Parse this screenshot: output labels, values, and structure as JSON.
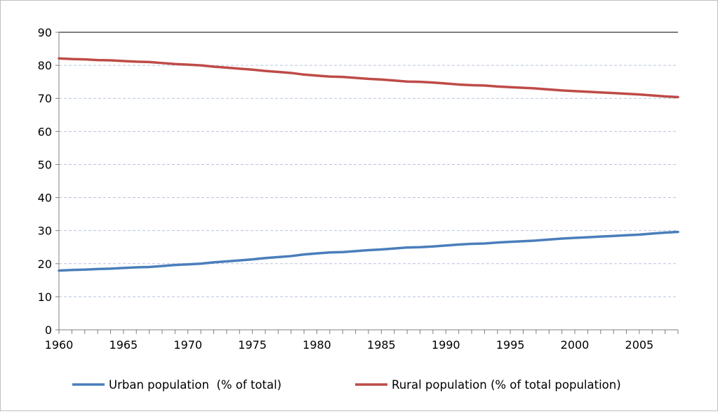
{
  "chart_data": {
    "type": "line",
    "title": "",
    "xlabel": "",
    "ylabel": "",
    "xlim": [
      1960,
      2008
    ],
    "ylim": [
      0,
      90
    ],
    "yticks": [
      0,
      10,
      20,
      30,
      40,
      50,
      60,
      70,
      80,
      90
    ],
    "xticks": [
      1960,
      1965,
      1970,
      1975,
      1980,
      1985,
      1990,
      1995,
      2000,
      2005
    ],
    "grid": true,
    "legend_position": "bottom",
    "x": [
      1960,
      1961,
      1962,
      1963,
      1964,
      1965,
      1966,
      1967,
      1968,
      1969,
      1970,
      1971,
      1972,
      1973,
      1974,
      1975,
      1976,
      1977,
      1978,
      1979,
      1980,
      1981,
      1982,
      1983,
      1984,
      1985,
      1986,
      1987,
      1988,
      1989,
      1990,
      1991,
      1992,
      1993,
      1994,
      1995,
      1996,
      1997,
      1998,
      1999,
      2000,
      2001,
      2002,
      2003,
      2004,
      2005,
      2006,
      2007,
      2008
    ],
    "series": [
      {
        "name": "Urban population  (% of total)",
        "color": "#4a7ebb",
        "values": [
          17.9,
          18.1,
          18.2,
          18.4,
          18.5,
          18.7,
          18.9,
          19.0,
          19.3,
          19.6,
          19.8,
          20.0,
          20.4,
          20.7,
          21.0,
          21.3,
          21.7,
          22.0,
          22.3,
          22.8,
          23.1,
          23.4,
          23.5,
          23.8,
          24.1,
          24.3,
          24.6,
          24.9,
          25.0,
          25.2,
          25.5,
          25.8,
          26.0,
          26.1,
          26.4,
          26.6,
          26.8,
          27.0,
          27.3,
          27.6,
          27.8,
          28.0,
          28.2,
          28.4,
          28.6,
          28.8,
          29.1,
          29.4,
          29.6
        ]
      },
      {
        "name": "Rural population (% of total population)",
        "color": "#be4b48",
        "values": [
          82.1,
          81.9,
          81.8,
          81.6,
          81.5,
          81.3,
          81.1,
          81.0,
          80.7,
          80.4,
          80.2,
          80.0,
          79.6,
          79.3,
          79.0,
          78.7,
          78.3,
          78.0,
          77.7,
          77.2,
          76.9,
          76.6,
          76.5,
          76.2,
          75.9,
          75.7,
          75.4,
          75.1,
          75.0,
          74.8,
          74.5,
          74.2,
          74.0,
          73.9,
          73.6,
          73.4,
          73.2,
          73.0,
          72.7,
          72.4,
          72.2,
          72.0,
          71.8,
          71.6,
          71.4,
          71.2,
          70.9,
          70.6,
          70.4
        ]
      }
    ]
  }
}
